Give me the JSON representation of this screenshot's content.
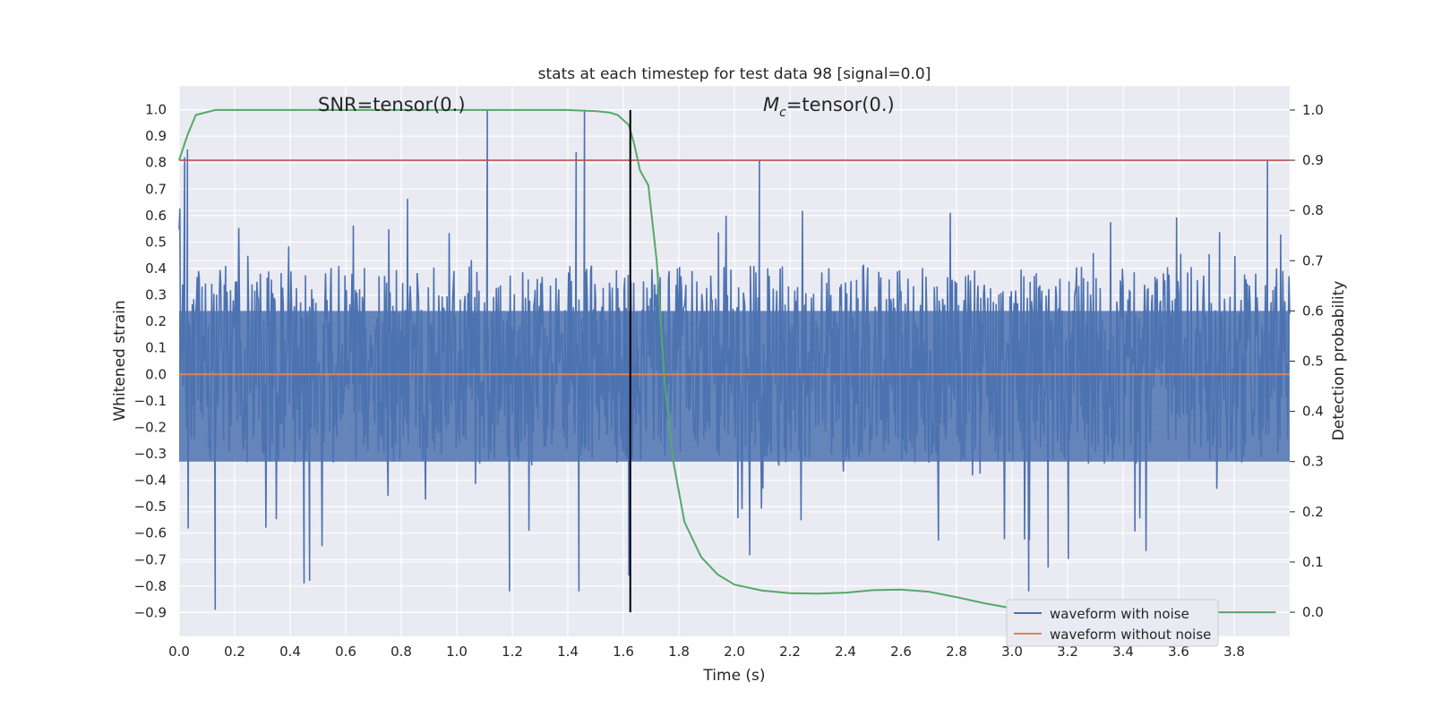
{
  "chart_data": {
    "type": "line",
    "title": "stats at each timestep for test data 98 [signal=0.0]",
    "xlabel": "Time (s)",
    "ylabel_left": "Whitened strain",
    "ylabel_right": "Detection probability",
    "xlim": [
      0.0,
      4.0
    ],
    "ylim_left": [
      -0.99,
      1.09
    ],
    "ylim_right": [
      -0.048,
      1.048
    ],
    "xticks": [
      "0.0",
      "0.2",
      "0.4",
      "0.6",
      "0.8",
      "1.0",
      "1.2",
      "1.4",
      "1.6",
      "1.8",
      "2.0",
      "2.2",
      "2.4",
      "2.6",
      "2.8",
      "3.0",
      "3.2",
      "3.4",
      "3.6",
      "3.8"
    ],
    "yticks_left": [
      "1.0",
      "0.9",
      "0.8",
      "0.7",
      "0.6",
      "0.5",
      "0.4",
      "0.3",
      "0.2",
      "0.1",
      "0.0",
      "−0.1",
      "−0.2",
      "−0.3",
      "−0.4",
      "−0.5",
      "−0.6",
      "−0.7",
      "−0.8",
      "−0.9"
    ],
    "yticks_right": [
      "1.0",
      "0.9",
      "0.8",
      "0.7",
      "0.6",
      "0.5",
      "0.4",
      "0.3",
      "0.2",
      "0.1",
      "0.0"
    ],
    "annotations": {
      "snr": "SNR=tensor(0.)",
      "mc_symbol": "M",
      "mc_sub": "c",
      "mc_rest": "=tensor(0.)"
    },
    "grid": true,
    "legend_position": "lower-right",
    "series": [
      {
        "name": "waveform with noise",
        "axis": "left",
        "color": "#4c72b0",
        "description_kind": "noise",
        "band": [
          -0.33,
          0.24
        ],
        "peaks": [
          [
            0.02,
            0.82
          ],
          [
            0.03,
            0.85
          ],
          [
            0.13,
            -0.89
          ],
          [
            0.45,
            -0.79
          ],
          [
            0.47,
            -0.78
          ],
          [
            1.11,
            1.0
          ],
          [
            1.19,
            -0.82
          ],
          [
            1.43,
            0.84
          ],
          [
            1.44,
            -0.82
          ],
          [
            1.46,
            1.0
          ],
          [
            1.62,
            -0.76
          ],
          [
            2.09,
            0.81
          ],
          [
            3.06,
            -0.82
          ],
          [
            3.92,
            0.81
          ],
          [
            3.13,
            -0.73
          ]
        ]
      },
      {
        "name": "waveform without noise",
        "axis": "left",
        "color": "#dd8452",
        "value": 0.0
      },
      {
        "name": "detection probability",
        "axis": "right",
        "color": "#55a868",
        "x": [
          0.0,
          0.03,
          0.06,
          0.13,
          0.2,
          0.4,
          0.6,
          0.8,
          1.0,
          1.2,
          1.4,
          1.5,
          1.55,
          1.58,
          1.6,
          1.62,
          1.64,
          1.66,
          1.69,
          1.72,
          1.75,
          1.78,
          1.82,
          1.88,
          1.94,
          2.0,
          2.1,
          2.2,
          2.3,
          2.4,
          2.5,
          2.6,
          2.7,
          2.8,
          2.9,
          3.0,
          3.2,
          3.5,
          3.75,
          3.95
        ],
        "y": [
          0.9,
          0.95,
          0.99,
          1.0,
          1.0,
          1.0,
          1.0,
          1.0,
          1.0,
          1.0,
          1.0,
          0.998,
          0.995,
          0.99,
          0.98,
          0.97,
          0.93,
          0.88,
          0.85,
          0.7,
          0.45,
          0.3,
          0.18,
          0.11,
          0.075,
          0.055,
          0.043,
          0.038,
          0.037,
          0.039,
          0.044,
          0.045,
          0.041,
          0.03,
          0.018,
          0.008,
          0.002,
          0.0,
          0.0,
          0.0
        ]
      }
    ],
    "hlines": [
      {
        "axis": "right",
        "value": 0.9,
        "color": "#c44e52"
      }
    ],
    "vlines": [
      {
        "x": 1.625,
        "ymin": 0.0,
        "ymax": 1.0,
        "color": "#000000"
      }
    ],
    "legend": [
      {
        "label": "waveform with noise",
        "color": "#4c72b0"
      },
      {
        "label": "waveform without noise",
        "color": "#dd8452"
      }
    ],
    "colors": {
      "plot_bg": "#eaeaf2",
      "grid": "#ffffff",
      "legend_bg": "#eaeaf2",
      "legend_border": "#cccccc"
    }
  }
}
